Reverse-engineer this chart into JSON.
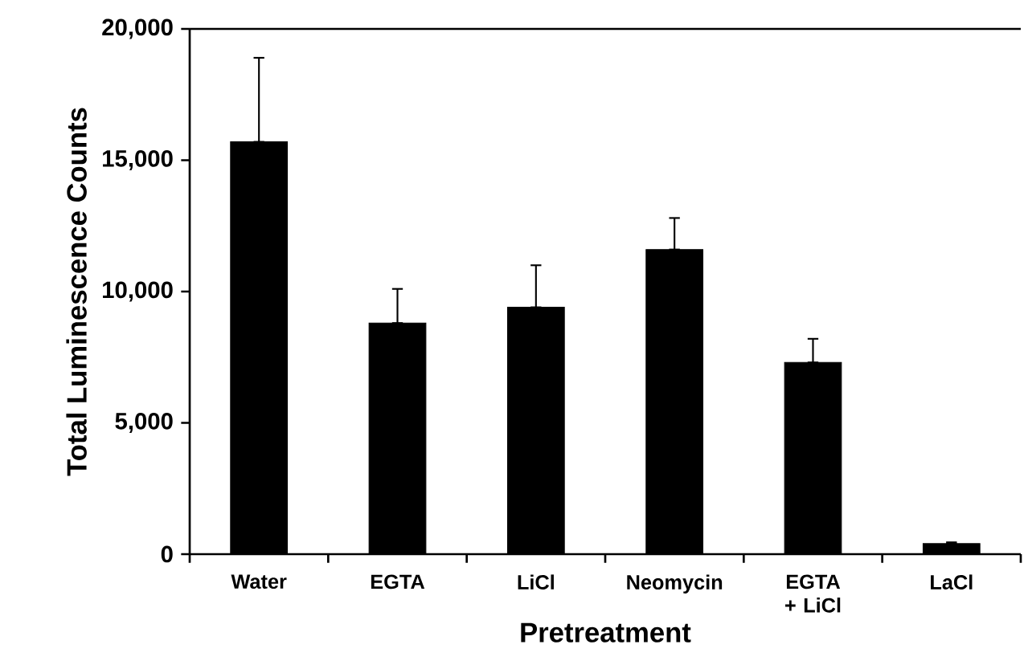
{
  "chart_data": {
    "type": "bar",
    "xlabel": "Pretreatment",
    "ylabel": "Total Luminescence Counts",
    "categories": [
      "Water",
      "EGTA",
      "LiCl",
      "Neomycin",
      "EGTA + LiCl",
      "LaCl"
    ],
    "values": [
      15700,
      8800,
      9400,
      11600,
      7300,
      400
    ],
    "errors": [
      [
        15700,
        18900
      ],
      [
        8800,
        10100
      ],
      [
        9400,
        11000
      ],
      [
        11600,
        12800
      ],
      [
        7300,
        8200
      ],
      [
        400,
        450
      ]
    ],
    "color": "#000000",
    "ylim": [
      0,
      20000
    ],
    "yticks": [
      0,
      {
        "value": 5000,
        "label": "5,000"
      },
      {
        "value": 10000,
        "label": "10,000"
      },
      {
        "value": 15000,
        "label": "15,000"
      },
      {
        "value": 20000,
        "label": "20,000"
      }
    ]
  }
}
